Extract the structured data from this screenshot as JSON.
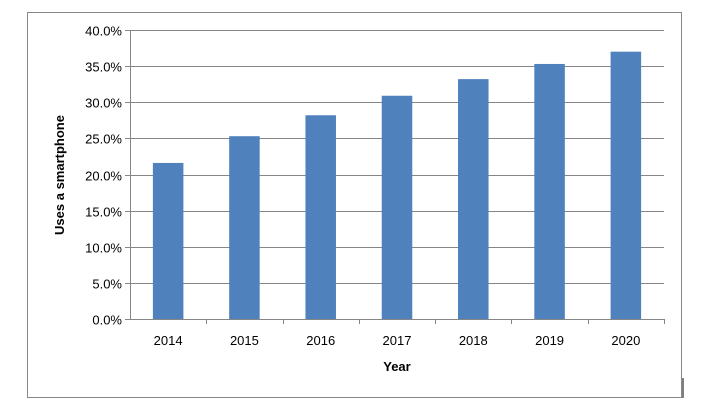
{
  "chart_data": {
    "type": "bar",
    "title": "",
    "xlabel": "Year",
    "ylabel": "Uses a smartphone",
    "categories": [
      "2014",
      "2015",
      "2016",
      "2017",
      "2018",
      "2019",
      "2020"
    ],
    "values": [
      21.6,
      25.3,
      28.2,
      30.9,
      33.2,
      35.3,
      37.0
    ],
    "ylim": [
      0,
      40
    ],
    "yticks": [
      "0.0%",
      "5.0%",
      "10.0%",
      "15.0%",
      "20.0%",
      "25.0%",
      "30.0%",
      "35.0%",
      "40.0%"
    ],
    "grid": true,
    "bar_color": "#4f81bd",
    "gridline_color": "#868686",
    "legend": "none"
  }
}
